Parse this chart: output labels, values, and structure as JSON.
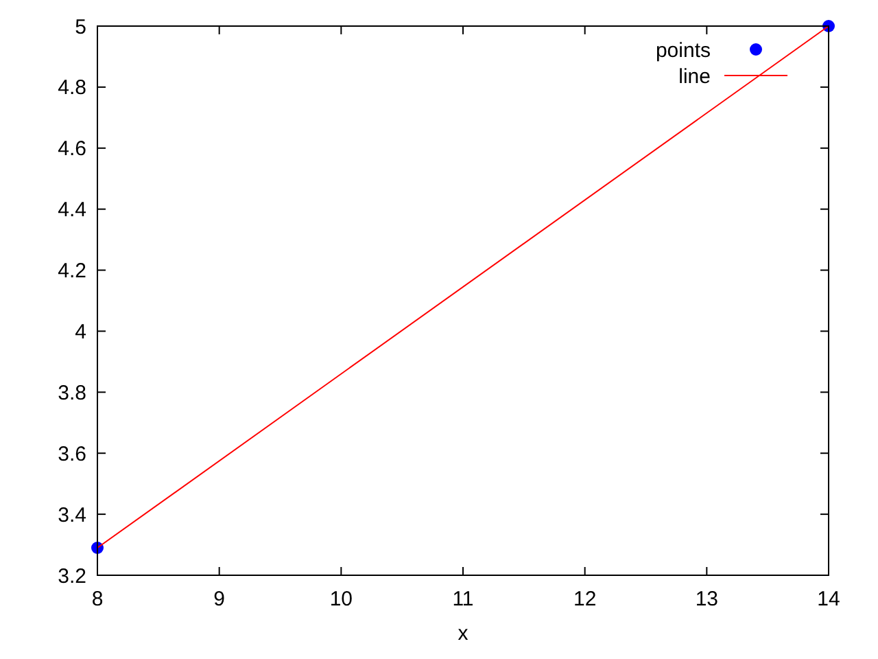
{
  "chart_data": {
    "type": "scatter",
    "xlabel": "x",
    "x": [
      8,
      14
    ],
    "series": [
      {
        "name": "points",
        "color": "#0000ff",
        "marker": "circle",
        "values": [
          3.29,
          5
        ]
      },
      {
        "name": "line",
        "type": "line",
        "color": "#ff0000",
        "marker": "none",
        "values": [
          3.29,
          5
        ]
      }
    ],
    "xlim": [
      8,
      14
    ],
    "xticks": [
      8,
      9,
      10,
      11,
      12,
      13,
      14
    ],
    "ylim": [
      3.2,
      5
    ],
    "yticks": [
      3.2,
      3.4,
      3.6,
      3.8,
      4,
      4.2,
      4.4,
      4.6,
      4.8,
      5
    ],
    "grid": false,
    "legend": "top right"
  }
}
